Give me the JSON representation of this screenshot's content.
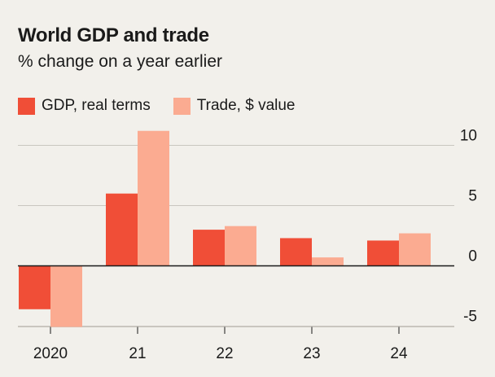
{
  "chart_data": {
    "type": "bar",
    "title": "World GDP and trade",
    "subtitle": "% change on a year earlier",
    "categories": [
      "2020",
      "21",
      "22",
      "23",
      "24"
    ],
    "series": [
      {
        "name": "GDP, real terms",
        "color": "#f04e37",
        "values": [
          -3.6,
          6.0,
          3.0,
          2.3,
          2.1
        ]
      },
      {
        "name": "Trade, $ value",
        "color": "#fbab91",
        "values": [
          -5.5,
          11.2,
          3.3,
          0.7,
          2.7
        ]
      }
    ],
    "yticks": [
      "10",
      "5",
      "0",
      "-5"
    ],
    "ylim": [
      -5,
      11
    ],
    "legend_position": "top-left",
    "grid": true
  }
}
